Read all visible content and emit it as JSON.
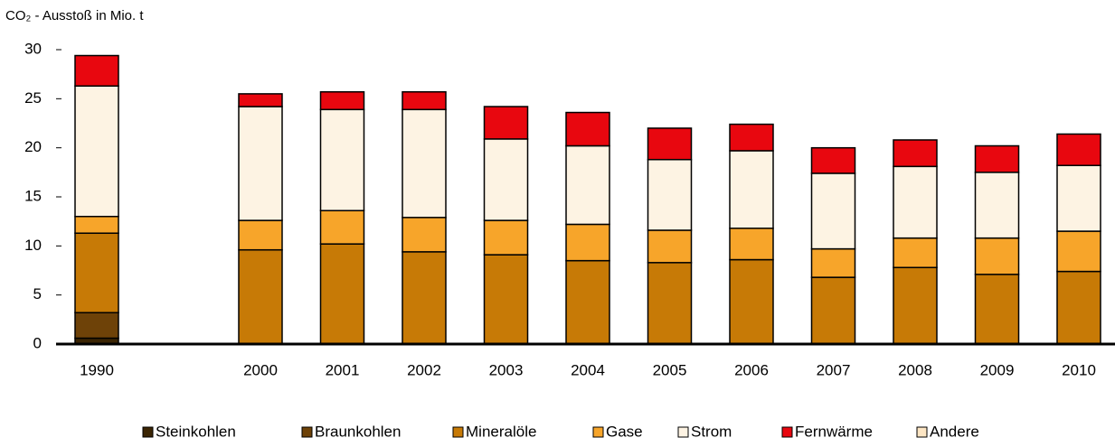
{
  "chart_data": {
    "type": "stacked_bar",
    "y_axis_label": "CO₂ - Ausstoß in Mio. t",
    "categories": [
      "1990",
      null,
      "2000",
      "2001",
      "2002",
      "2003",
      "2004",
      "2005",
      "2006",
      "2007",
      "2008",
      "2009",
      "2010"
    ],
    "ylim": [
      0,
      30
    ],
    "yticks": [
      0,
      5,
      10,
      15,
      20,
      25,
      30
    ],
    "legend": "bottom",
    "series": [
      {
        "name": "Steinkohlen",
        "color": "#3b2504",
        "values": [
          0.6,
          null,
          0,
          0,
          0,
          0,
          0,
          0,
          0,
          0,
          0,
          0,
          0
        ]
      },
      {
        "name": "Braunkohlen",
        "color": "#6e4208",
        "values": [
          2.6,
          null,
          0,
          0,
          0,
          0,
          0,
          0,
          0,
          0,
          0,
          0,
          0
        ]
      },
      {
        "name": "Mineralöle",
        "color": "#c77a06",
        "values": [
          8.1,
          null,
          9.6,
          10.2,
          9.4,
          9.1,
          8.5,
          8.3,
          8.6,
          6.8,
          7.8,
          7.1,
          7.4
        ]
      },
      {
        "name": "Gase",
        "color": "#f7a52a",
        "values": [
          1.7,
          null,
          3.0,
          3.4,
          3.5,
          3.5,
          3.7,
          3.3,
          3.2,
          2.9,
          3.0,
          3.7,
          4.1
        ]
      },
      {
        "name": "Strom",
        "color": "#fdf3e3",
        "values": [
          13.3,
          null,
          11.6,
          10.3,
          11.0,
          8.3,
          8.0,
          7.2,
          7.9,
          7.7,
          7.3,
          6.7,
          6.7
        ]
      },
      {
        "name": "Fernwärme",
        "color": "#e8070f",
        "values": [
          3.1,
          null,
          1.3,
          1.8,
          1.8,
          3.3,
          3.4,
          3.2,
          2.7,
          2.6,
          2.7,
          2.7,
          3.2
        ]
      },
      {
        "name": "Andere",
        "color": "#fde6c4",
        "values": [
          0,
          null,
          0,
          0,
          0,
          0,
          0,
          0,
          0,
          0,
          0,
          0,
          0
        ]
      }
    ]
  }
}
